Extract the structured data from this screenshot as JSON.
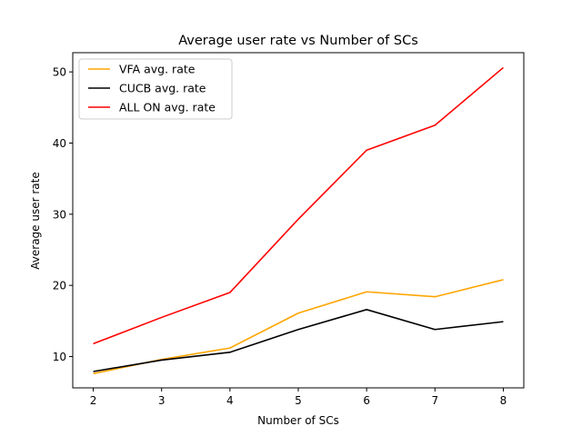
{
  "chart_data": {
    "type": "line",
    "title": "Average user rate vs Number of SCs",
    "xlabel": "Number of SCs",
    "ylabel": "Average user rate",
    "x": [
      2,
      3,
      4,
      5,
      6,
      7,
      8
    ],
    "xlim": [
      1.7,
      8.3
    ],
    "ylim": [
      5.6,
      52.7
    ],
    "xticks": [
      2,
      3,
      4,
      5,
      6,
      7,
      8
    ],
    "yticks": [
      10,
      20,
      30,
      40,
      50
    ],
    "grid": false,
    "legend_position": "upper-left",
    "series": [
      {
        "name": "VFA avg. rate",
        "color": "#ffa500",
        "values": [
          7.6,
          9.6,
          11.2,
          16.1,
          19.1,
          18.4,
          20.8
        ]
      },
      {
        "name": "CUCB avg. rate",
        "color": "#000000",
        "values": [
          7.9,
          9.5,
          10.6,
          13.8,
          16.6,
          13.8,
          14.9
        ]
      },
      {
        "name": "ALL ON avg. rate",
        "color": "#ff0000",
        "values": [
          11.8,
          15.5,
          19.0,
          29.3,
          39.0,
          42.5,
          50.6
        ]
      }
    ]
  }
}
